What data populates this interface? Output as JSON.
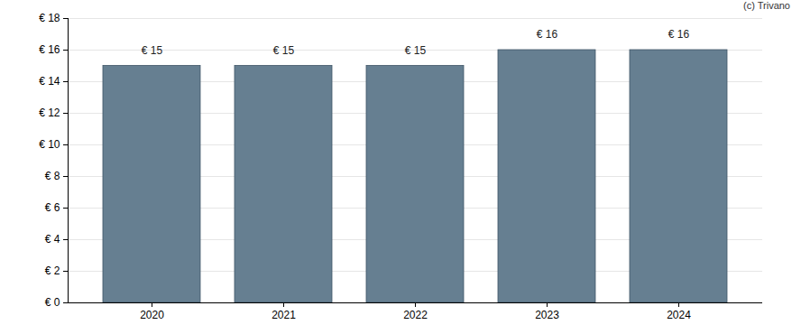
{
  "chart_data": {
    "type": "bar",
    "caption": "(c) Trivano",
    "categories": [
      "2020",
      "2021",
      "2022",
      "2023",
      "2024"
    ],
    "values": [
      15,
      15,
      15,
      16,
      16
    ],
    "value_labels": [
      "€ 15",
      "€ 15",
      "€ 15",
      "€ 16",
      "€ 16"
    ],
    "data_labels": true,
    "color": "#667f91",
    "ylim": [
      0,
      18
    ],
    "yticks": [
      {
        "value": 0,
        "label": "€ 0"
      },
      {
        "value": 2,
        "label": "€ 2"
      },
      {
        "value": 4,
        "label": "€ 4"
      },
      {
        "value": 6,
        "label": "€ 6"
      },
      {
        "value": 8,
        "label": "€ 8"
      },
      {
        "value": 10,
        "label": "€ 10"
      },
      {
        "value": 12,
        "label": "€ 12"
      },
      {
        "value": 14,
        "label": "€ 14"
      },
      {
        "value": 16,
        "label": "€ 16"
      },
      {
        "value": 18,
        "label": "€ 18"
      }
    ],
    "grid": true
  }
}
